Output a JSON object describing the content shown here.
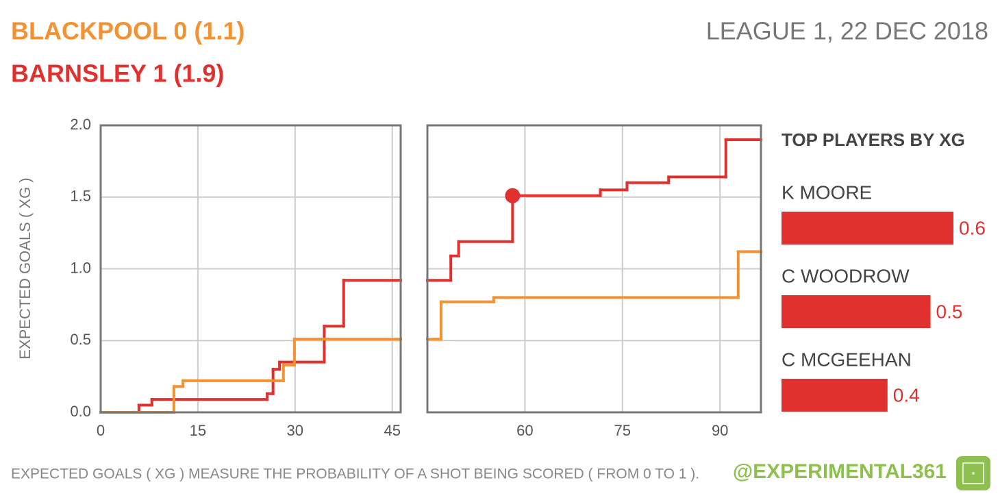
{
  "header": {
    "home": "BLACKPOOL 0 (1.1)",
    "away": "BARNSLEY 1 (1.9)",
    "match": "LEAGUE 1, 22 DEC 2018"
  },
  "chart_data": [
    {
      "type": "line",
      "step": "post",
      "ylabel": "EXPECTED GOALS ( XG )",
      "xlim": [
        0,
        46.3
      ],
      "xticks": [
        0,
        15,
        30,
        45
      ],
      "ylim": [
        0,
        2
      ],
      "yticks": [
        {
          "value": 0,
          "label": "0.0"
        },
        {
          "value": 0.5,
          "label": "0.5"
        },
        {
          "value": 1,
          "label": "1.0"
        },
        {
          "value": 1.5,
          "label": "1.5"
        },
        {
          "value": 2,
          "label": "2.0"
        }
      ],
      "grid": true,
      "series": [
        {
          "color": "#e0312e",
          "x": [
            0,
            5.9,
            7.9,
            25.7,
            26.6,
            27.6,
            34.5,
            37.5
          ],
          "values": [
            0,
            0.05,
            0.09,
            0.13,
            0.3,
            0.35,
            0.6,
            0.92
          ]
        },
        {
          "color": "#f39233",
          "x": [
            0,
            11.3,
            12.7,
            28.2,
            29.9
          ],
          "values": [
            0,
            0.18,
            0.22,
            0.33,
            0.51
          ]
        }
      ]
    },
    {
      "type": "line",
      "step": "post",
      "xlim": [
        45,
        96.3
      ],
      "xticks": [
        60,
        75,
        90
      ],
      "ylim": [
        0,
        2
      ],
      "grid": true,
      "series": [
        {
          "color": "#e0312e",
          "x": [
            45,
            48.6,
            49.8,
            58.1,
            71.6,
            75.7,
            82.1,
            90.9
          ],
          "values": [
            0.92,
            1.09,
            1.19,
            1.51,
            1.55,
            1.6,
            1.64,
            1.9
          ],
          "goals": [
            {
              "x": 58.1,
              "y": 1.51
            }
          ]
        },
        {
          "color": "#f39233",
          "x": [
            45,
            47.1,
            55.2,
            92.8
          ],
          "values": [
            0.51,
            0.77,
            0.8,
            1.12
          ]
        }
      ]
    },
    {
      "type": "bar",
      "orientation": "horizontal",
      "title": "TOP PLAYERS BY XG",
      "color": "#e0312e",
      "categories": [
        "K MOORE",
        "C WOODROW",
        "C MCGEEHAN"
      ],
      "values": [
        0.6,
        0.52,
        0.37
      ],
      "value_labels": [
        "0.6",
        "0.5",
        "0.4"
      ]
    }
  ],
  "footer": {
    "note": "EXPECTED GOALS ( XG ) MEASURE THE PROBABILITY OF A SHOT BEING SCORED ( FROM 0 TO 1 ).",
    "handle": "@EXPERIMENTAL361"
  }
}
